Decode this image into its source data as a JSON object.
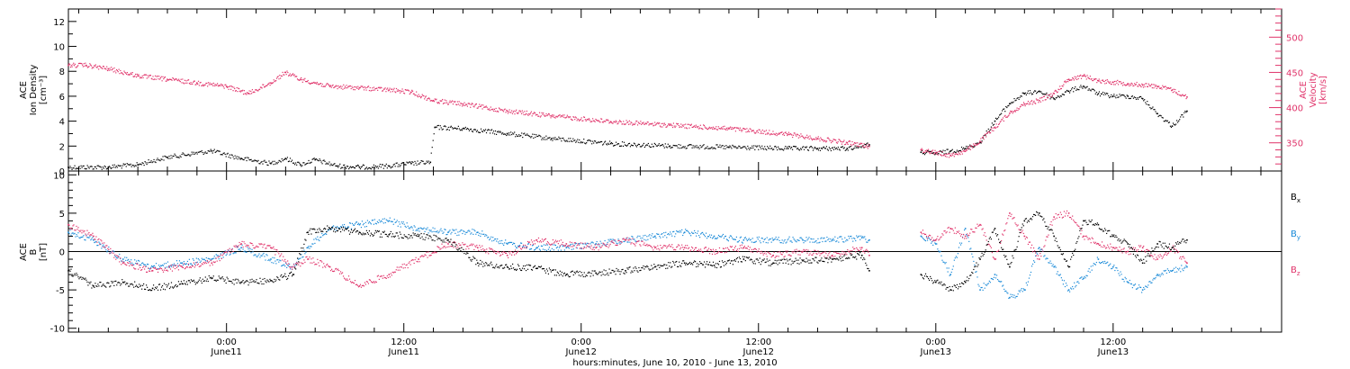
{
  "chart_data": [
    {
      "type": "scatter",
      "panel": "top",
      "xlabel": "hours:minutes, June 10, 2010 - June 13, 2010",
      "x_ticks": [
        {
          "hours": 24,
          "time": "0:00",
          "date": "June11"
        },
        {
          "hours": 36,
          "time": "12:00",
          "date": "June11"
        },
        {
          "hours": 48,
          "time": "0:00",
          "date": "June12"
        },
        {
          "hours": 60,
          "time": "12:00",
          "date": "June12"
        },
        {
          "hours": 72,
          "time": "0:00",
          "date": "June13"
        },
        {
          "hours": 84,
          "time": "12:00",
          "date": "June13"
        }
      ],
      "xlim_hours": [
        13.3,
        95.4
      ],
      "left_axis": {
        "label_lines": [
          "ACE",
          "Ion Density",
          "[cm⁻³]"
        ],
        "ylim": [
          0,
          13
        ],
        "ticks": [
          0,
          2,
          4,
          6,
          8,
          10,
          12
        ]
      },
      "right_axis": {
        "label_lines": [
          "ACE",
          "Velocity",
          "[km/s]"
        ],
        "ylim": [
          310,
          540
        ],
        "ticks": [
          350,
          400,
          450,
          500
        ],
        "color": "#e0336a"
      },
      "series": [
        {
          "axis": "left",
          "color": "#000000",
          "x_hours": [
            13.3,
            16,
            18,
            20,
            23,
            25,
            27,
            28,
            29,
            30,
            31.5,
            33,
            35,
            36.5,
            37.8,
            38.1,
            40,
            43,
            46,
            50,
            54,
            58,
            62,
            64,
            66,
            67.5,
            68,
            69.5,
            71,
            72,
            73,
            74,
            75,
            76,
            77,
            78,
            79,
            80,
            81,
            82,
            83,
            84,
            85,
            86,
            87,
            88,
            89
          ],
          "values": [
            0.3,
            0.3,
            0.5,
            1.1,
            1.6,
            1.0,
            0.6,
            1.0,
            0.5,
            0.9,
            0.4,
            0.3,
            0.4,
            0.6,
            0.7,
            3.5,
            3.4,
            3.0,
            2.6,
            2.2,
            2.0,
            1.9,
            1.8,
            1.8,
            1.8,
            2.1,
            null,
            null,
            1.5,
            1.4,
            1.6,
            1.8,
            2.3,
            4.0,
            5.4,
            6.2,
            6.4,
            5.8,
            6.4,
            6.8,
            6.2,
            6.0,
            6.0,
            5.8,
            4.6,
            3.6,
            4.8
          ]
        },
        {
          "axis": "right",
          "color": "#e0336a",
          "x_hours": [
            13.3,
            14.5,
            16,
            18,
            20,
            22,
            24,
            25.5,
            27,
            28,
            29,
            31,
            33,
            35,
            36.5,
            38,
            40,
            43,
            46,
            50,
            54,
            58,
            62,
            64,
            66,
            67.5,
            68,
            69.5,
            71,
            72,
            73,
            74,
            75,
            76,
            77,
            78,
            79,
            80,
            81,
            82,
            83,
            84,
            85,
            86,
            87,
            88,
            89
          ],
          "values": [
            460,
            460,
            455,
            445,
            440,
            435,
            430,
            420,
            435,
            450,
            440,
            430,
            428,
            425,
            422,
            410,
            405,
            395,
            388,
            380,
            375,
            370,
            362,
            356,
            350,
            345,
            null,
            null,
            340,
            336,
            332,
            338,
            352,
            372,
            392,
            405,
            410,
            420,
            440,
            445,
            438,
            436,
            434,
            432,
            430,
            425,
            415
          ]
        }
      ]
    },
    {
      "type": "scatter",
      "panel": "bottom",
      "left_axis": {
        "label_lines": [
          "ACE",
          "B",
          "[nT]"
        ],
        "ylim": [
          -10.5,
          10.5
        ],
        "ticks": [
          -10,
          -5,
          0,
          5,
          10
        ]
      },
      "zero_line": true,
      "series": [
        {
          "name": "B",
          "sub": "x",
          "color": "#000000",
          "x_hours": [
            13.3,
            15,
            17,
            19,
            21,
            23,
            25,
            27,
            28.5,
            29.5,
            31,
            33,
            35,
            37,
            39,
            41,
            43,
            45,
            47,
            49,
            51,
            53,
            55,
            57,
            59,
            61,
            63,
            65,
            67,
            67.5,
            68,
            69.5,
            71,
            72,
            73,
            74,
            75,
            76,
            77,
            78,
            79,
            80,
            81,
            82,
            83,
            84,
            85,
            86,
            87,
            88,
            89
          ],
          "values": [
            -2.5,
            -4.5,
            -4.0,
            -4.8,
            -4.2,
            -3.5,
            -4.0,
            -3.8,
            -3.0,
            2.5,
            3.0,
            2.5,
            2.2,
            2.0,
            1.5,
            -1.5,
            -2.0,
            -2.2,
            -3.0,
            -2.8,
            -2.5,
            -2.0,
            -1.5,
            -1.8,
            -1.0,
            -1.5,
            -1.2,
            -1.0,
            -0.5,
            -2.5,
            null,
            null,
            -3.0,
            -4.0,
            -5.0,
            -4.0,
            -1.0,
            3.0,
            -2.0,
            4.0,
            5.0,
            2.0,
            -2.0,
            4.0,
            3.5,
            2.0,
            1.0,
            -1.5,
            1.0,
            0.5,
            1.5
          ]
        },
        {
          "name": "B",
          "sub": "y",
          "color": "#1a8ad8",
          "x_hours": [
            13.3,
            15,
            17,
            19,
            21,
            23,
            25,
            27,
            28.5,
            29.5,
            31,
            33,
            35,
            37,
            39,
            41,
            43,
            45,
            47,
            49,
            51,
            53,
            55,
            57,
            59,
            61,
            63,
            65,
            67,
            67.5,
            68,
            69.5,
            71,
            72,
            73,
            74,
            75,
            76,
            77,
            78,
            79,
            80,
            81,
            82,
            83,
            84,
            85,
            86,
            87,
            88,
            89
          ],
          "values": [
            2.5,
            1.5,
            -1.0,
            -2.0,
            -1.5,
            -1.0,
            0.5,
            -1.0,
            -2.0,
            0.5,
            3.0,
            3.5,
            4.0,
            3.0,
            2.5,
            2.5,
            1.0,
            0.5,
            0.5,
            1.0,
            1.5,
            2.0,
            2.5,
            2.0,
            1.5,
            1.5,
            1.5,
            1.5,
            1.8,
            1.5,
            null,
            null,
            2.0,
            1.0,
            -3.0,
            3.0,
            -5.0,
            -3.0,
            -6.0,
            -5.0,
            0.5,
            -2.0,
            -5.0,
            -3.5,
            -1.0,
            -2.0,
            -4.0,
            -5.0,
            -3.0,
            -2.5,
            -2.0
          ]
        },
        {
          "name": "B",
          "sub": "z",
          "color": "#e0336a",
          "x_hours": [
            13.3,
            15,
            17,
            19,
            21,
            23,
            25,
            27,
            28.5,
            29.5,
            31,
            33,
            35,
            37,
            39,
            41,
            43,
            45,
            47,
            49,
            51,
            53,
            55,
            57,
            59,
            61,
            63,
            65,
            67,
            67.5,
            68,
            69.5,
            71,
            72,
            73,
            74,
            75,
            76,
            77,
            78,
            79,
            80,
            81,
            82,
            83,
            84,
            85,
            86,
            87,
            88,
            89
          ],
          "values": [
            3.5,
            2.0,
            -1.5,
            -2.5,
            -2.0,
            -1.5,
            1.0,
            0.5,
            -2.0,
            -1.0,
            -2.0,
            -4.5,
            -3.0,
            -1.0,
            1.0,
            0.5,
            -0.5,
            1.5,
            1.0,
            0.5,
            1.5,
            0.5,
            0.5,
            0.0,
            0.5,
            -0.5,
            0.0,
            -0.5,
            0.5,
            -0.5,
            null,
            null,
            2.5,
            1.5,
            3.0,
            2.0,
            3.5,
            -1.0,
            5.0,
            2.0,
            -1.0,
            4.5,
            5.0,
            2.0,
            1.0,
            0.5,
            0.0,
            0.5,
            -1.0,
            0.5,
            -1.5
          ]
        }
      ]
    }
  ]
}
